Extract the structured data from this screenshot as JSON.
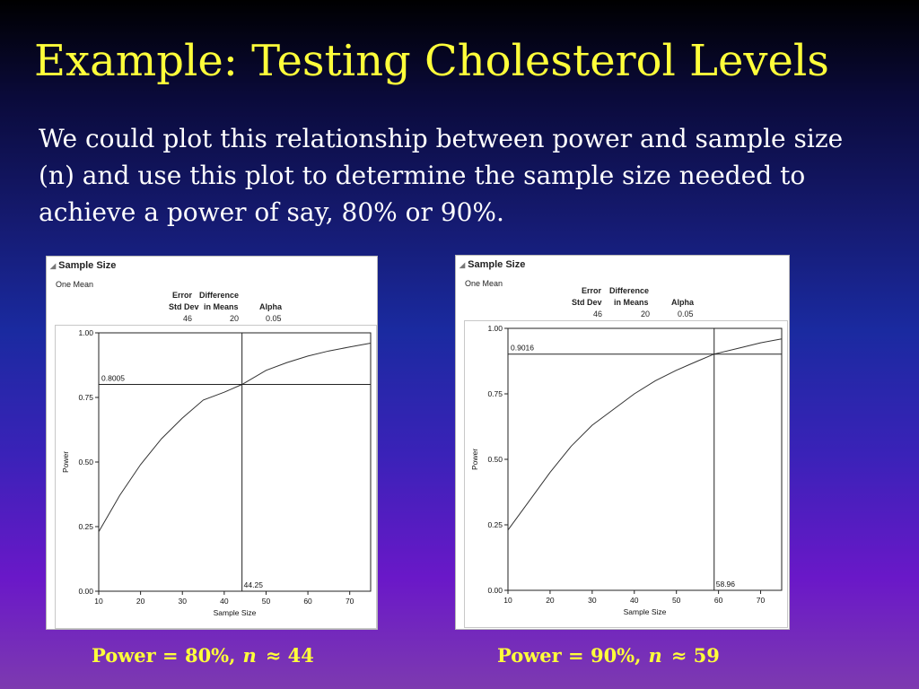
{
  "slide": {
    "title": "Example: Testing Cholesterol Levels",
    "body": "We could plot this relationship between power and sample size (n) and use this plot to determine the sample size needed to achieve a power of say, 80% or 90%."
  },
  "panels": [
    {
      "header": "Sample Size",
      "subheader": "One Mean",
      "stats": {
        "error_label_1": "Error",
        "error_label_2": "Std Dev",
        "error_value": "46",
        "diff_label_1": "Difference",
        "diff_label_2": "in Means",
        "diff_value": "20",
        "alpha_label": "Alpha",
        "alpha_value": "0.05"
      },
      "caption": {
        "prefix": "Power = 80%,",
        "variable": "n",
        "approx": "≈ 44"
      }
    },
    {
      "header": "Sample Size",
      "subheader": "One Mean",
      "stats": {
        "error_label_1": "Error",
        "error_label_2": "Std Dev",
        "error_value": "46",
        "diff_label_1": "Difference",
        "diff_label_2": "in Means",
        "diff_value": "20",
        "alpha_label": "Alpha",
        "alpha_value": "0.05"
      },
      "caption": {
        "prefix": "Power = 90%,",
        "variable": "n",
        "approx": "≈ 59"
      }
    }
  ],
  "chart_data": [
    {
      "type": "line",
      "xlabel": "Sample Size",
      "ylabel": "Power",
      "xlim": [
        10,
        75
      ],
      "ylim": [
        0,
        1
      ],
      "xticks": [
        10,
        20,
        30,
        40,
        50,
        60,
        70
      ],
      "yticks": [
        "0.00",
        "0.25",
        "0.50",
        "0.75",
        "1.00"
      ],
      "x": [
        10,
        15,
        20,
        25,
        30,
        35,
        40,
        44.25,
        50,
        55,
        60,
        65,
        70,
        75
      ],
      "y": [
        0.23,
        0.37,
        0.49,
        0.59,
        0.67,
        0.74,
        0.77,
        0.8005,
        0.855,
        0.885,
        0.91,
        0.93,
        0.945,
        0.96
      ],
      "crosshair": {
        "x": 44.25,
        "y": 0.8005,
        "x_label": "44.25",
        "y_label": "0.8005"
      }
    },
    {
      "type": "line",
      "xlabel": "Sample Size",
      "ylabel": "Power",
      "xlim": [
        10,
        75
      ],
      "ylim": [
        0,
        1
      ],
      "xticks": [
        10,
        20,
        30,
        40,
        50,
        60,
        70
      ],
      "yticks": [
        "0.00",
        "0.25",
        "0.50",
        "0.75",
        "1.00"
      ],
      "x": [
        10,
        15,
        20,
        25,
        30,
        35,
        40,
        45,
        50,
        55,
        58.96,
        65,
        70,
        75
      ],
      "y": [
        0.23,
        0.34,
        0.45,
        0.55,
        0.63,
        0.69,
        0.75,
        0.8,
        0.84,
        0.875,
        0.9016,
        0.925,
        0.945,
        0.96
      ],
      "crosshair": {
        "x": 58.96,
        "y": 0.9016,
        "x_label": "58.96",
        "y_label": "0.9016"
      }
    }
  ]
}
